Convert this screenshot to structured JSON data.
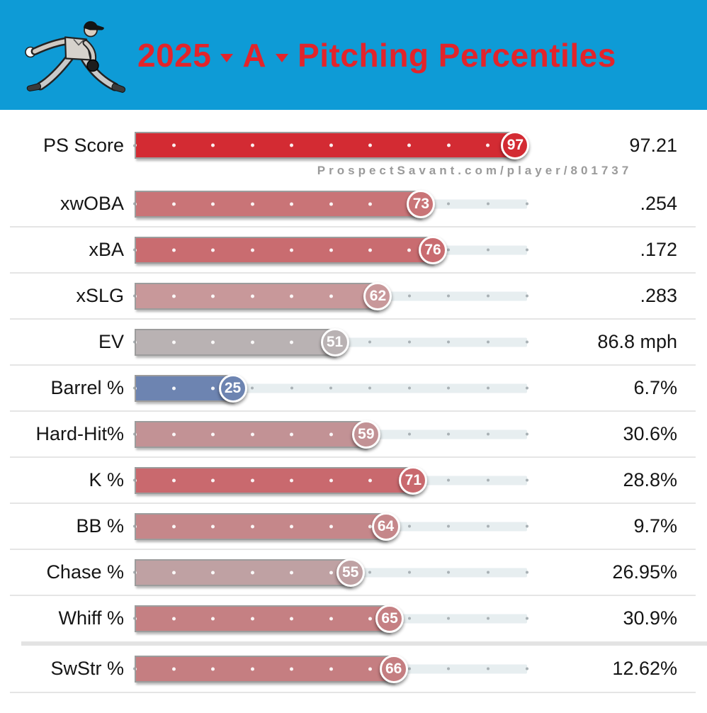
{
  "header": {
    "year": "2025",
    "level": "A",
    "title": "Pitching Percentiles",
    "bg_color": "#0E9BD6",
    "accent_color": "#E2242B",
    "icon": "pitcher-illustration"
  },
  "watermark": "ProspectSavant.com/player/801737",
  "colors": {
    "track": "#E7EEF0",
    "track_dot": "#A9B1B5",
    "fill_border": "#9C9C9C",
    "separator": "#E5E5E5"
  },
  "rows": [
    {
      "label": "PS Score",
      "percentile": 97,
      "value": "97.21",
      "color": "#D32B33",
      "tall": true,
      "sep": false,
      "thick_before": false
    },
    {
      "label": "xwOBA",
      "percentile": 73,
      "value": ".254",
      "color": "#C97477",
      "tall": false,
      "sep": false,
      "thick_before": false
    },
    {
      "label": "xBA",
      "percentile": 76,
      "value": ".172",
      "color": "#C96C70",
      "tall": false,
      "sep": true,
      "thick_before": false
    },
    {
      "label": "xSLG",
      "percentile": 62,
      "value": ".283",
      "color": "#C8989A",
      "tall": false,
      "sep": true,
      "thick_before": false
    },
    {
      "label": "EV",
      "percentile": 51,
      "value": "86.8 mph",
      "color": "#B9B2B3",
      "tall": false,
      "sep": true,
      "thick_before": false
    },
    {
      "label": "Barrel %",
      "percentile": 25,
      "value": "6.7%",
      "color": "#6D84B1",
      "tall": false,
      "sep": true,
      "thick_before": false
    },
    {
      "label": "Hard-Hit%",
      "percentile": 59,
      "value": "30.6%",
      "color": "#C29295",
      "tall": false,
      "sep": true,
      "thick_before": false
    },
    {
      "label": "K %",
      "percentile": 71,
      "value": "28.8%",
      "color": "#C9696E",
      "tall": false,
      "sep": true,
      "thick_before": false
    },
    {
      "label": "BB %",
      "percentile": 64,
      "value": "9.7%",
      "color": "#C5878A",
      "tall": false,
      "sep": true,
      "thick_before": false
    },
    {
      "label": "Chase %",
      "percentile": 55,
      "value": "26.95%",
      "color": "#BFA1A3",
      "tall": false,
      "sep": true,
      "thick_before": false
    },
    {
      "label": "Whiff %",
      "percentile": 65,
      "value": "30.9%",
      "color": "#C58083",
      "tall": false,
      "sep": true,
      "thick_before": false
    },
    {
      "label": "SwStr %",
      "percentile": 66,
      "value": "12.62%",
      "color": "#C57E81",
      "tall": false,
      "sep": false,
      "thick_before": true
    }
  ],
  "chart_data": {
    "type": "bar",
    "title": "2025 A Pitching Percentiles",
    "orientation": "horizontal",
    "categories": [
      "PS Score",
      "xwOBA",
      "xBA",
      "xSLG",
      "EV",
      "Barrel %",
      "Hard-Hit%",
      "K %",
      "BB %",
      "Chase %",
      "Whiff %",
      "SwStr %"
    ],
    "series": [
      {
        "name": "percentile",
        "values": [
          97,
          73,
          76,
          62,
          51,
          25,
          59,
          71,
          64,
          55,
          65,
          66
        ]
      },
      {
        "name": "stat_value",
        "values": [
          "97.21",
          ".254",
          ".172",
          ".283",
          "86.8 mph",
          "6.7%",
          "30.6%",
          "28.8%",
          "9.7%",
          "26.95%",
          "30.9%",
          "12.62%"
        ]
      }
    ],
    "xlim": [
      0,
      100
    ],
    "grid": "dots every 10 percentile",
    "legend": "none",
    "color_scale": "blue (low) → gray (50) → red (high)",
    "watermark": "ProspectSavant.com/player/801737"
  }
}
